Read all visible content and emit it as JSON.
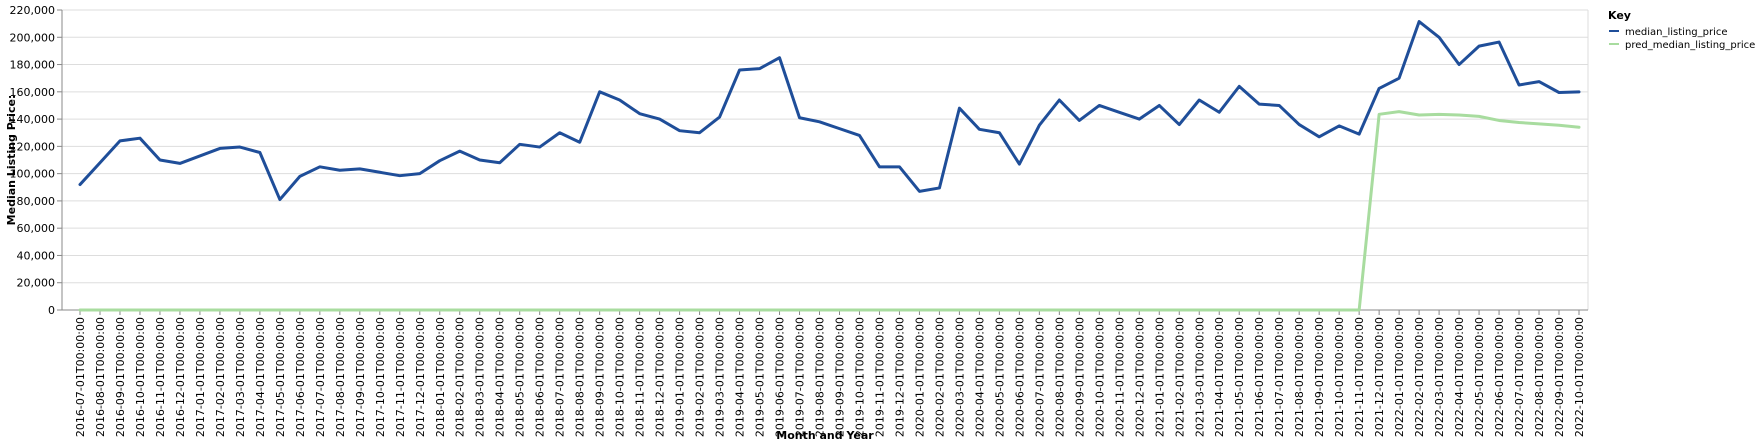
{
  "chart_data": {
    "type": "line",
    "xlabel": "Month and Year",
    "ylabel": "Median Listing Price:",
    "ylim": [
      0,
      220000
    ],
    "yticks": [
      "0",
      "20,000",
      "40,000",
      "60,000",
      "80,000",
      "100,000",
      "120,000",
      "140,000",
      "160,000",
      "180,000",
      "200,000",
      "220,000"
    ],
    "grid": true,
    "legend": {
      "title": "Key",
      "placement": "top-right"
    },
    "categories": [
      "2016-07-01T00:00:00",
      "2016-08-01T00:00:00",
      "2016-09-01T00:00:00",
      "2016-10-01T00:00:00",
      "2016-11-01T00:00:00",
      "2016-12-01T00:00:00",
      "2017-01-01T00:00:00",
      "2017-02-01T00:00:00",
      "2017-03-01T00:00:00",
      "2017-04-01T00:00:00",
      "2017-05-01T00:00:00",
      "2017-06-01T00:00:00",
      "2017-07-01T00:00:00",
      "2017-08-01T00:00:00",
      "2017-09-01T00:00:00",
      "2017-10-01T00:00:00",
      "2017-11-01T00:00:00",
      "2017-12-01T00:00:00",
      "2018-01-01T00:00:00",
      "2018-02-01T00:00:00",
      "2018-03-01T00:00:00",
      "2018-04-01T00:00:00",
      "2018-05-01T00:00:00",
      "2018-06-01T00:00:00",
      "2018-07-01T00:00:00",
      "2018-08-01T00:00:00",
      "2018-09-01T00:00:00",
      "2018-10-01T00:00:00",
      "2018-11-01T00:00:00",
      "2018-12-01T00:00:00",
      "2019-01-01T00:00:00",
      "2019-02-01T00:00:00",
      "2019-03-01T00:00:00",
      "2019-04-01T00:00:00",
      "2019-05-01T00:00:00",
      "2019-06-01T00:00:00",
      "2019-07-01T00:00:00",
      "2019-08-01T00:00:00",
      "2019-09-01T00:00:00",
      "2019-10-01T00:00:00",
      "2019-11-01T00:00:00",
      "2019-12-01T00:00:00",
      "2020-01-01T00:00:00",
      "2020-02-01T00:00:00",
      "2020-03-01T00:00:00",
      "2020-04-01T00:00:00",
      "2020-05-01T00:00:00",
      "2020-06-01T00:00:00",
      "2020-07-01T00:00:00",
      "2020-08-01T00:00:00",
      "2020-09-01T00:00:00",
      "2020-10-01T00:00:00",
      "2020-11-01T00:00:00",
      "2020-12-01T00:00:00",
      "2021-01-01T00:00:00",
      "2021-02-01T00:00:00",
      "2021-03-01T00:00:00",
      "2021-04-01T00:00:00",
      "2021-05-01T00:00:00",
      "2021-06-01T00:00:00",
      "2021-07-01T00:00:00",
      "2021-08-01T00:00:00",
      "2021-09-01T00:00:00",
      "2021-10-01T00:00:00",
      "2021-11-01T00:00:00",
      "2021-12-01T00:00:00",
      "2022-01-01T00:00:00",
      "2022-02-01T00:00:00",
      "2022-03-01T00:00:00",
      "2022-04-01T00:00:00",
      "2022-05-01T00:00:00",
      "2022-06-01T00:00:00",
      "2022-07-01T00:00:00",
      "2022-08-01T00:00:00",
      "2022-09-01T00:00:00",
      "2022-10-01T00:00:00"
    ],
    "series": [
      {
        "name": "median_listing_price",
        "color": "#1f4e99",
        "values": [
          92000,
          108000,
          124000,
          126000,
          110000,
          107500,
          113000,
          118500,
          119500,
          115500,
          81000,
          98000,
          105000,
          102500,
          103500,
          101000,
          98500,
          100000,
          109500,
          116500,
          110000,
          108000,
          121500,
          119500,
          130000,
          123000,
          160000,
          154000,
          144000,
          140000,
          131500,
          130000,
          141500,
          176000,
          177000,
          185000,
          141000,
          138000,
          133000,
          128000,
          105000,
          105000,
          87000,
          89500,
          148000,
          132500,
          130000,
          107000,
          135500,
          154000,
          139000,
          150000,
          145000,
          140000,
          150000,
          136000,
          154000,
          145000,
          164000,
          151000,
          150000,
          136000,
          127000,
          135000,
          129000,
          162500,
          170000,
          211500,
          200000,
          180000,
          193500,
          196500,
          165000,
          167500,
          159500,
          160000
        ]
      },
      {
        "name": "pred_median_listing_price",
        "color": "#a8dc9f",
        "values": [
          0,
          0,
          0,
          0,
          0,
          0,
          0,
          0,
          0,
          0,
          0,
          0,
          0,
          0,
          0,
          0,
          0,
          0,
          0,
          0,
          0,
          0,
          0,
          0,
          0,
          0,
          0,
          0,
          0,
          0,
          0,
          0,
          0,
          0,
          0,
          0,
          0,
          0,
          0,
          0,
          0,
          0,
          0,
          0,
          0,
          0,
          0,
          0,
          0,
          0,
          0,
          0,
          0,
          0,
          0,
          0,
          0,
          0,
          0,
          0,
          0,
          0,
          0,
          0,
          0,
          143500,
          145500,
          143000,
          143500,
          143000,
          142000,
          139000,
          137500,
          136500,
          135500,
          134000
        ]
      }
    ]
  }
}
